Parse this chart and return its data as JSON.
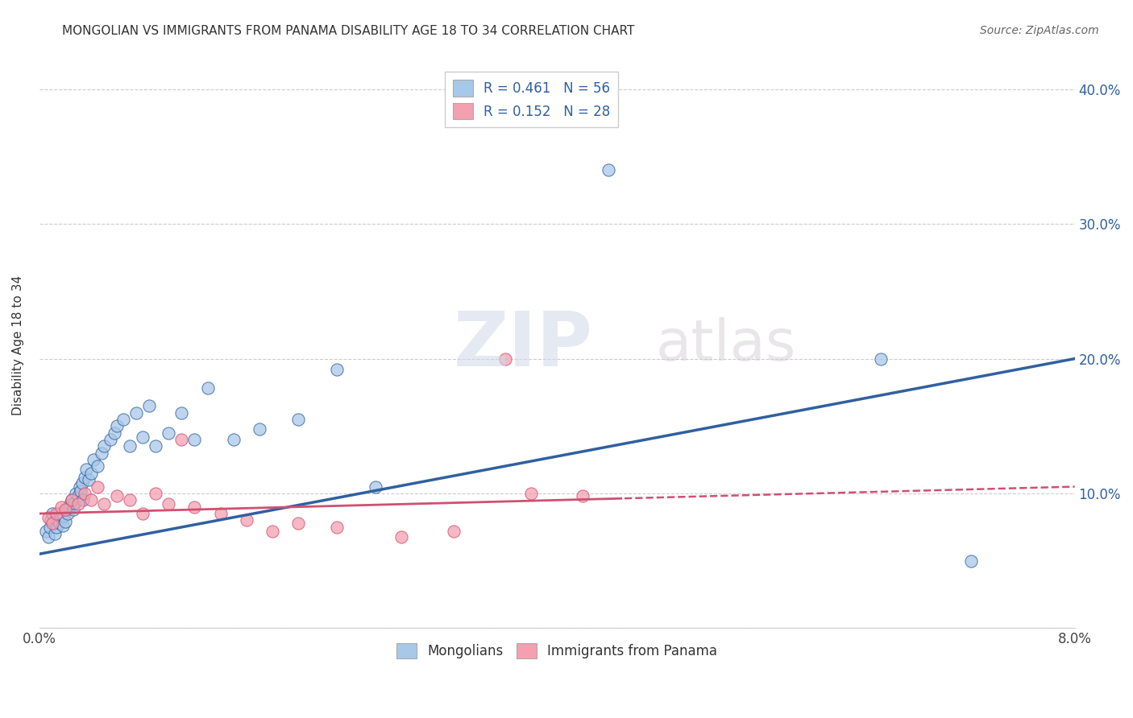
{
  "title": "MONGOLIAN VS IMMIGRANTS FROM PANAMA DISABILITY AGE 18 TO 34 CORRELATION CHART",
  "source": "Source: ZipAtlas.com",
  "ylabel": "Disability Age 18 to 34",
  "x_min": 0.0,
  "x_max": 0.08,
  "y_min": 0.0,
  "y_max": 0.42,
  "x_ticks": [
    0.0,
    0.01,
    0.02,
    0.03,
    0.04,
    0.05,
    0.06,
    0.07,
    0.08
  ],
  "x_tick_labels": [
    "0.0%",
    "",
    "",
    "",
    "",
    "",
    "",
    "",
    "8.0%"
  ],
  "y_ticks": [
    0.0,
    0.1,
    0.2,
    0.3,
    0.4
  ],
  "y_tick_labels": [
    "",
    "10.0%",
    "20.0%",
    "30.0%",
    "40.0%"
  ],
  "blue_color": "#a8c8e8",
  "pink_color": "#f4a0b0",
  "blue_line_color": "#3060a0",
  "pink_line_color": "#d05070",
  "title_color": "#333333",
  "source_color": "#666666",
  "mongolians_x": [
    0.0005,
    0.0007,
    0.0008,
    0.0009,
    0.001,
    0.0012,
    0.0013,
    0.0014,
    0.0015,
    0.0016,
    0.0017,
    0.0018,
    0.0019,
    0.002,
    0.0021,
    0.0022,
    0.0023,
    0.0024,
    0.0025,
    0.0026,
    0.0027,
    0.0028,
    0.003,
    0.0031,
    0.0032,
    0.0033,
    0.0034,
    0.0035,
    0.0036,
    0.0038,
    0.004,
    0.0042,
    0.0045,
    0.0048,
    0.005,
    0.0055,
    0.0058,
    0.006,
    0.0065,
    0.007,
    0.0075,
    0.008,
    0.0085,
    0.009,
    0.01,
    0.011,
    0.012,
    0.013,
    0.015,
    0.017,
    0.02,
    0.023,
    0.026,
    0.044,
    0.065,
    0.072
  ],
  "mongolians_y": [
    0.072,
    0.068,
    0.075,
    0.08,
    0.085,
    0.07,
    0.075,
    0.08,
    0.085,
    0.078,
    0.082,
    0.076,
    0.083,
    0.079,
    0.088,
    0.085,
    0.09,
    0.092,
    0.095,
    0.088,
    0.093,
    0.1,
    0.098,
    0.105,
    0.102,
    0.108,
    0.095,
    0.112,
    0.118,
    0.11,
    0.115,
    0.125,
    0.12,
    0.13,
    0.135,
    0.14,
    0.145,
    0.15,
    0.155,
    0.135,
    0.16,
    0.142,
    0.165,
    0.135,
    0.145,
    0.16,
    0.14,
    0.178,
    0.14,
    0.148,
    0.155,
    0.192,
    0.105,
    0.34,
    0.2,
    0.05
  ],
  "panama_x": [
    0.0007,
    0.001,
    0.0013,
    0.0017,
    0.002,
    0.0025,
    0.003,
    0.0035,
    0.004,
    0.0045,
    0.005,
    0.006,
    0.007,
    0.008,
    0.009,
    0.01,
    0.011,
    0.012,
    0.014,
    0.016,
    0.018,
    0.02,
    0.023,
    0.028,
    0.032,
    0.036,
    0.038,
    0.042
  ],
  "panama_y": [
    0.082,
    0.078,
    0.085,
    0.09,
    0.088,
    0.095,
    0.092,
    0.1,
    0.095,
    0.105,
    0.092,
    0.098,
    0.095,
    0.085,
    0.1,
    0.092,
    0.14,
    0.09,
    0.085,
    0.08,
    0.072,
    0.078,
    0.075,
    0.068,
    0.072,
    0.2,
    0.1,
    0.098
  ]
}
